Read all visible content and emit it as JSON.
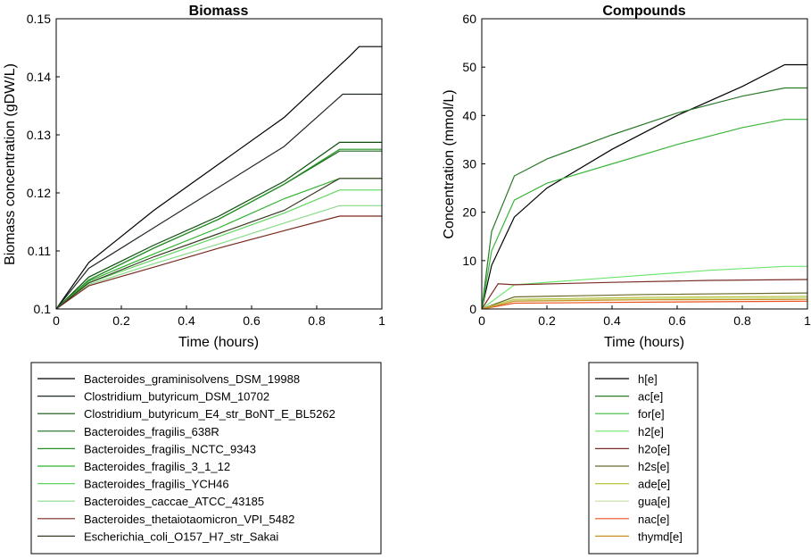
{
  "chart_data": [
    {
      "type": "line",
      "title": "Biomass",
      "xlabel": "Time (hours)",
      "ylabel": "Biomass concentration (gDW/L)",
      "xlim": [
        0,
        1
      ],
      "ylim": [
        0.1,
        0.15
      ],
      "xticks": [
        "0",
        "0.2",
        "0.4",
        "0.6",
        "0.8",
        "1"
      ],
      "yticks": [
        "0.1",
        "0.11",
        "0.12",
        "0.13",
        "0.14",
        "0.15"
      ],
      "grid": false,
      "legend_position": "below",
      "series": [
        {
          "name": "Bacteroides_graminisolvens_DSM_19988",
          "color": "#000000",
          "x": [
            0,
            0.1,
            0.3,
            0.5,
            0.7,
            0.9,
            0.93,
            1
          ],
          "y": [
            0.1,
            0.108,
            0.117,
            0.125,
            0.133,
            0.1435,
            0.1452,
            0.1452
          ]
        },
        {
          "name": "Clostridium_butyricum_DSM_10702",
          "color": "#202a20",
          "x": [
            0,
            0.1,
            0.3,
            0.5,
            0.7,
            0.85,
            0.88,
            1
          ],
          "y": [
            0.1,
            0.107,
            0.114,
            0.121,
            0.128,
            0.1355,
            0.137,
            0.137
          ]
        },
        {
          "name": "Clostridium_butyricum_E4_str_BoNT_E_BL5262",
          "color": "#0f4d0f",
          "x": [
            0,
            0.1,
            0.3,
            0.5,
            0.7,
            0.87,
            1
          ],
          "y": [
            0.1,
            0.1055,
            0.111,
            0.116,
            0.122,
            0.1287,
            0.1287
          ]
        },
        {
          "name": "Bacteroides_fragilis_638R",
          "color": "#1b6b1b",
          "x": [
            0,
            0.1,
            0.3,
            0.5,
            0.7,
            0.87,
            1
          ],
          "y": [
            0.1,
            0.105,
            0.1105,
            0.1155,
            0.1215,
            0.1272,
            0.1272
          ]
        },
        {
          "name": "Bacteroides_fragilis_NCTC_9343",
          "color": "#259225",
          "x": [
            0,
            0.1,
            0.3,
            0.5,
            0.7,
            0.87,
            1
          ],
          "y": [
            0.1,
            0.105,
            0.1105,
            0.1155,
            0.1215,
            0.1275,
            0.1275
          ]
        },
        {
          "name": "Bacteroides_fragilis_3_1_12",
          "color": "#2fb32f",
          "x": [
            0,
            0.1,
            0.3,
            0.5,
            0.7,
            0.87,
            1
          ],
          "y": [
            0.1,
            0.1048,
            0.1095,
            0.114,
            0.119,
            0.1225,
            0.1225
          ]
        },
        {
          "name": "Bacteroides_fragilis_YCH46",
          "color": "#5fd65f",
          "x": [
            0,
            0.1,
            0.3,
            0.5,
            0.7,
            0.87,
            1
          ],
          "y": [
            0.1,
            0.1045,
            0.1085,
            0.1125,
            0.1165,
            0.1205,
            0.1205
          ]
        },
        {
          "name": "Bacteroides_caccae_ATCC_43185",
          "color": "#8ad98a",
          "x": [
            0,
            0.1,
            0.3,
            0.5,
            0.7,
            0.87,
            1
          ],
          "y": [
            0.1,
            0.1042,
            0.1078,
            0.1112,
            0.1148,
            0.1178,
            0.1178
          ]
        },
        {
          "name": "Bacteroides_thetaiotaomicron_VPI_5482",
          "color": "#7a2a1f",
          "x": [
            0,
            0.1,
            0.3,
            0.5,
            0.7,
            0.87,
            1
          ],
          "y": [
            0.1,
            0.104,
            0.1072,
            0.1105,
            0.1135,
            0.116,
            0.116
          ]
        },
        {
          "name": "Escherichia_coli_O157_H7_str_Sakai",
          "color": "#3a3a25",
          "x": [
            0,
            0.1,
            0.3,
            0.5,
            0.7,
            0.87,
            1
          ],
          "y": [
            0.1,
            0.1045,
            0.109,
            0.113,
            0.117,
            0.1225,
            0.1225
          ]
        }
      ]
    },
    {
      "type": "line",
      "title": "Compounds",
      "xlabel": "Time (hours)",
      "ylabel": "Concentration (mmol/L)",
      "xlim": [
        0,
        1
      ],
      "ylim": [
        0,
        60
      ],
      "xticks": [
        "0",
        "0.2",
        "0.4",
        "0.6",
        "0.8",
        "1"
      ],
      "yticks": [
        "0",
        "10",
        "20",
        "30",
        "40",
        "50",
        "60"
      ],
      "grid": false,
      "legend_position": "below",
      "series": [
        {
          "name": "h[e]",
          "color": "#000000",
          "x": [
            0,
            0.03,
            0.1,
            0.2,
            0.4,
            0.6,
            0.8,
            0.93,
            1
          ],
          "y": [
            0,
            9,
            19,
            25,
            33,
            40,
            46,
            50.5,
            50.5
          ]
        },
        {
          "name": "ac[e]",
          "color": "#2a7a2a",
          "x": [
            0,
            0.03,
            0.1,
            0.2,
            0.4,
            0.6,
            0.8,
            0.93,
            1
          ],
          "y": [
            0,
            16,
            27.5,
            31,
            36,
            40.5,
            44,
            45.7,
            45.7
          ]
        },
        {
          "name": "for[e]",
          "color": "#3cb53c",
          "x": [
            0,
            0.03,
            0.1,
            0.2,
            0.4,
            0.6,
            0.8,
            0.93,
            1
          ],
          "y": [
            0,
            12,
            22.5,
            26,
            30,
            34,
            37.5,
            39.2,
            39.2
          ]
        },
        {
          "name": "h2[e]",
          "color": "#6ee66e",
          "x": [
            0,
            0.1,
            0.4,
            0.7,
            0.93,
            1
          ],
          "y": [
            0,
            5,
            6.5,
            8,
            8.8,
            8.8
          ]
        },
        {
          "name": "h2o[e]",
          "color": "#7a2e26",
          "x": [
            0,
            0.05,
            0.1,
            0.4,
            0.7,
            1
          ],
          "y": [
            0,
            5.2,
            5,
            5.5,
            5.9,
            6.1
          ]
        },
        {
          "name": "h2s[e]",
          "color": "#6b6b2a",
          "x": [
            0,
            0.1,
            0.5,
            1
          ],
          "y": [
            0,
            2.5,
            3,
            3.3
          ]
        },
        {
          "name": "ade[e]",
          "color": "#b8c43c",
          "x": [
            0,
            0.1,
            0.5,
            1
          ],
          "y": [
            0,
            2,
            2.4,
            2.6
          ]
        },
        {
          "name": "gua[e]",
          "color": "#c8e0a0",
          "x": [
            0,
            0.1,
            0.5,
            1
          ],
          "y": [
            0,
            1.8,
            2.1,
            2.3
          ]
        },
        {
          "name": "nac[e]",
          "color": "#e8531f",
          "x": [
            0,
            0.1,
            0.5,
            1
          ],
          "y": [
            0,
            1.2,
            1.4,
            1.6
          ]
        },
        {
          "name": "thymd[e]",
          "color": "#c8901f",
          "x": [
            0,
            0.1,
            0.5,
            1
          ],
          "y": [
            0,
            1.6,
            1.9,
            2
          ]
        }
      ]
    }
  ]
}
